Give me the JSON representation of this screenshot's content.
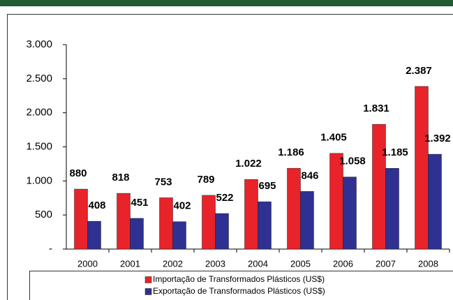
{
  "chart_data": {
    "type": "bar",
    "categories": [
      "2000",
      "2001",
      "2002",
      "2003",
      "2004",
      "2005",
      "2006",
      "2007",
      "2008"
    ],
    "series": [
      {
        "name": "Importação de Transformados Plásticos (US$)",
        "color": "#e8232a",
        "values": [
          880,
          818,
          753,
          789,
          1022,
          1186,
          1405,
          1831,
          2387
        ],
        "value_labels": [
          "880",
          "818",
          "753",
          "789",
          "1.022",
          "1.186",
          "1.405",
          "1.831",
          "2.387"
        ]
      },
      {
        "name": "Exportação de Transformados Plásticos (US$)",
        "color": "#2e3192",
        "values": [
          408,
          451,
          402,
          522,
          695,
          846,
          1058,
          1185,
          1392
        ],
        "value_labels": [
          "408",
          "451",
          "402",
          "522",
          "695",
          "846",
          "1.058",
          "1.185",
          "1.392"
        ]
      }
    ],
    "ylim": [
      0,
      3000
    ],
    "yticks": [
      {
        "value": 0,
        "label": "-"
      },
      500,
      {
        "value": 1000,
        "label": "1.000"
      },
      {
        "value": 1500,
        "label": "1.500"
      },
      {
        "value": 2000,
        "label": "2.000"
      },
      {
        "value": 2500,
        "label": "2.500"
      },
      {
        "value": 3000,
        "label": "3.000"
      }
    ],
    "legend": "bottom"
  }
}
